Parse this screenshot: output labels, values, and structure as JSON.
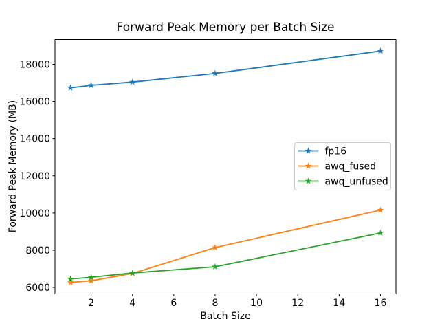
{
  "figure": {
    "background": "#ffffff",
    "spine_color": "#000000",
    "text_color": "#000000",
    "legend_border_color": "#cccccc"
  },
  "chart_data": {
    "type": "line",
    "title": "Forward Peak Memory per Batch Size",
    "xlabel": "Batch Size",
    "ylabel": "Forward Peak Memory (MB)",
    "marker": "star",
    "grid": false,
    "legend_position": "center-right",
    "x": [
      1,
      2,
      4,
      8,
      16
    ],
    "series": [
      {
        "name": "fp16",
        "color": "#1f77b4",
        "values": [
          16735,
          16870,
          17045,
          17510,
          18710
        ]
      },
      {
        "name": "awq_fused",
        "color": "#ff7f0e",
        "values": [
          6270,
          6360,
          6750,
          8140,
          10155
        ]
      },
      {
        "name": "awq_unfused",
        "color": "#2ca02c",
        "values": [
          6455,
          6545,
          6775,
          7110,
          8925
        ]
      }
    ],
    "xlim": [
      0.25,
      16.75
    ],
    "ylim": [
      5650,
      19330
    ],
    "xticks": [
      2,
      4,
      6,
      8,
      10,
      12,
      14,
      16
    ],
    "yticks": [
      6000,
      8000,
      10000,
      12000,
      14000,
      16000,
      18000
    ]
  }
}
